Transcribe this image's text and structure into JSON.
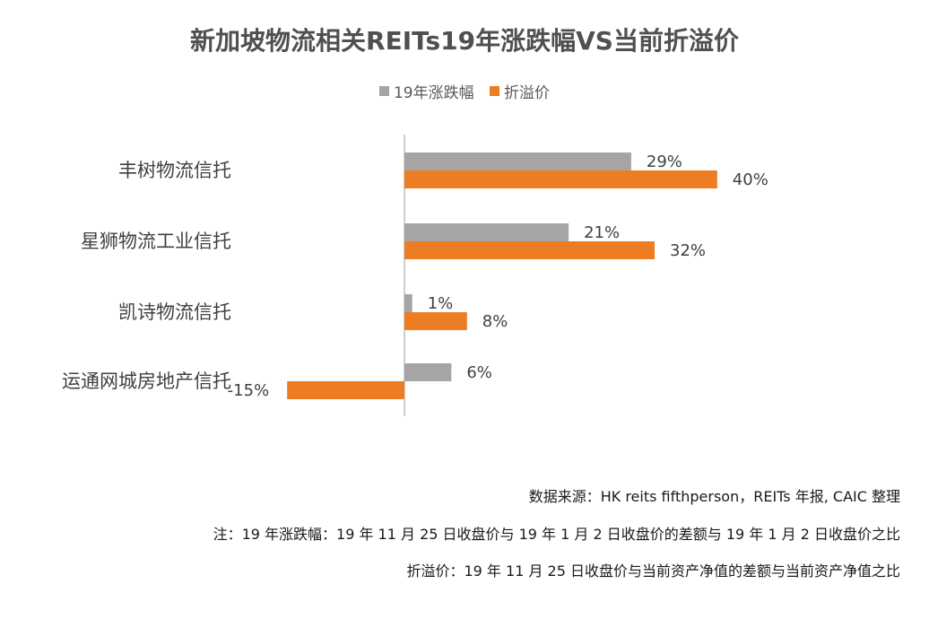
{
  "chart_data": {
    "type": "bar",
    "orientation": "horizontal",
    "title": "新加坡物流相关REITs19年涨跌幅VS当前折溢价",
    "legend_position": "top",
    "categories": [
      "丰树物流信托",
      "星狮物流工业信托",
      "凯诗物流信托",
      "运通网城房地产信托"
    ],
    "series": [
      {
        "name": "19年涨跌幅",
        "color": "#a6a4a4",
        "values": [
          29,
          21,
          1,
          6
        ],
        "labels": [
          "29%",
          "21%",
          "1%",
          "6%"
        ]
      },
      {
        "name": "折溢价",
        "color": "#ed7d22",
        "values": [
          40,
          32,
          8,
          -15
        ],
        "labels": [
          "40%",
          "32%",
          "8%",
          "-15%"
        ]
      }
    ],
    "xlim": [
      -15,
      40
    ],
    "grid": false,
    "unit": "%"
  },
  "notes": {
    "source": "数据来源：HK reits fifthperson，REITs 年报, CAIC 整理",
    "change_def": "注：19 年涨跌幅：19 年 11 月 25 日收盘价与 19 年 1 月 2 日收盘价的差额与 19 年 1 月 2 日收盘价之比",
    "premium_def": "折溢价：19 年 11 月 25 日收盘价与当前资产净值的差额与当前资产净值之比"
  }
}
